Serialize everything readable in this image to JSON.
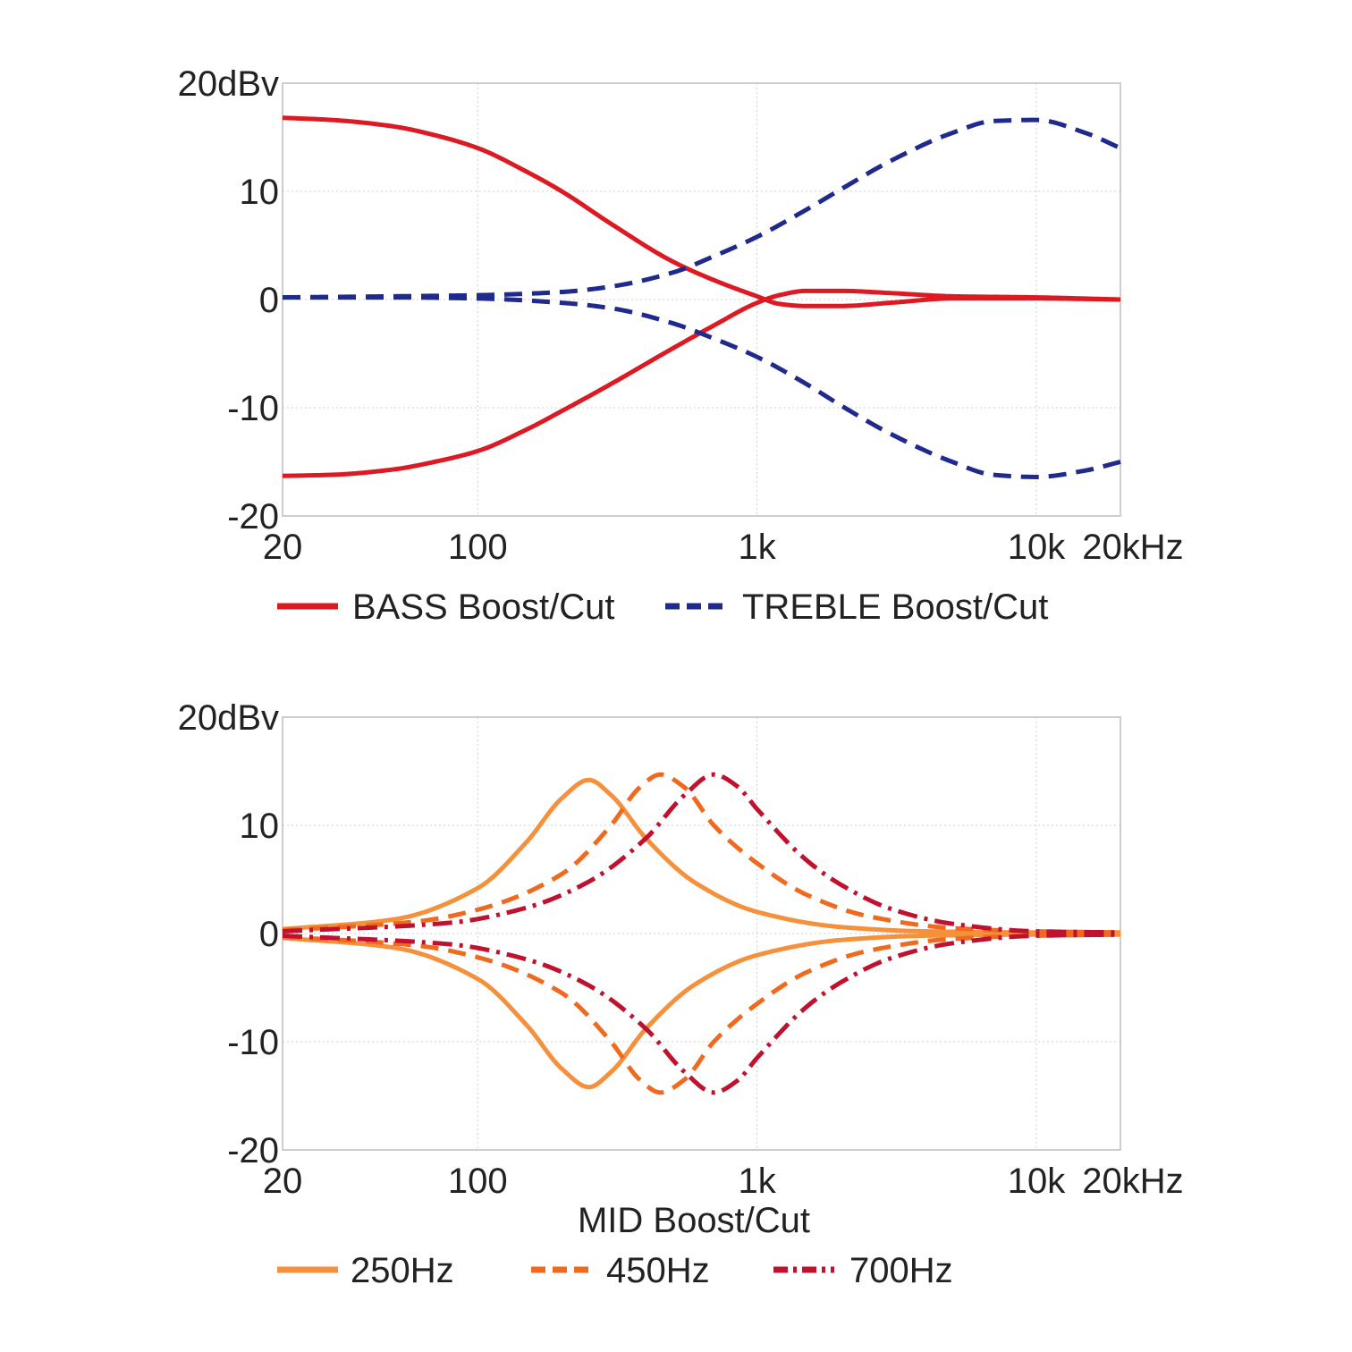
{
  "chart_data": [
    {
      "type": "line",
      "x_scale": "log",
      "xlim": [
        20,
        20000
      ],
      "ylim": [
        -20,
        20
      ],
      "x_ticks": [
        {
          "value": 20,
          "label": "20"
        },
        {
          "value": 100,
          "label": "100"
        },
        {
          "value": 1000,
          "label": "1k"
        },
        {
          "value": 10000,
          "label": "10k"
        },
        {
          "value": 20000,
          "label": "20kHz"
        }
      ],
      "y_ticks": [
        {
          "value": 20,
          "label": "20dBv"
        },
        {
          "value": 10,
          "label": "10"
        },
        {
          "value": 0,
          "label": "0"
        },
        {
          "value": -10,
          "label": "-10"
        },
        {
          "value": -20,
          "label": "-20"
        }
      ],
      "grid": true,
      "legend_position": "bottom",
      "series": [
        {
          "name": "BASS Boost/Cut",
          "legend_label": "BASS Boost/Cut",
          "color": "#dc1a24",
          "dash": "solid",
          "lines": [
            {
              "x": [
                20,
                30,
                50,
                70,
                100,
                150,
                200,
                300,
                500,
                700,
                1000,
                1200,
                1500,
                2000,
                3000,
                5000,
                10000,
                20000
              ],
              "y": [
                16.8,
                16.6,
                16.0,
                15.2,
                14.0,
                11.8,
                10.0,
                7.0,
                3.5,
                1.8,
                0.3,
                -0.4,
                -0.6,
                -0.6,
                -0.3,
                0.1,
                0.1,
                0
              ]
            },
            {
              "x": [
                20,
                30,
                50,
                70,
                100,
                150,
                200,
                300,
                500,
                700,
                1000,
                1200,
                1500,
                2000,
                3000,
                5000,
                10000,
                20000
              ],
              "y": [
                -16.3,
                -16.2,
                -15.7,
                -15.0,
                -14.0,
                -12.0,
                -10.3,
                -7.8,
                -4.5,
                -2.4,
                -0.3,
                0.4,
                0.8,
                0.8,
                0.6,
                0.3,
                0.2,
                0
              ]
            }
          ]
        },
        {
          "name": "TREBLE Boost/Cut",
          "legend_label": "TREBLE Boost/Cut",
          "color": "#1f2a8c",
          "dash": "dashed",
          "lines": [
            {
              "x": [
                20,
                50,
                100,
                200,
                300,
                500,
                700,
                1000,
                1500,
                2000,
                3000,
                5000,
                7000,
                10000,
                15000,
                20000
              ],
              "y": [
                0.2,
                0.3,
                0.4,
                0.7,
                1.2,
                2.5,
                4.0,
                5.8,
                8.3,
                10.2,
                12.8,
                15.4,
                16.5,
                16.6,
                15.4,
                14.0
              ]
            },
            {
              "x": [
                20,
                50,
                100,
                200,
                300,
                500,
                700,
                1000,
                1500,
                2000,
                3000,
                5000,
                7000,
                10000,
                15000,
                20000
              ],
              "y": [
                0.2,
                0.2,
                0.1,
                -0.3,
                -0.8,
                -2.2,
                -3.6,
                -5.3,
                -7.8,
                -9.8,
                -12.4,
                -15.0,
                -16.2,
                -16.4,
                -15.8,
                -15.0
              ]
            }
          ]
        }
      ]
    },
    {
      "type": "line",
      "x_scale": "log",
      "xlim": [
        20,
        20000
      ],
      "ylim": [
        -20,
        20
      ],
      "xlabel": "MID Boost/Cut",
      "x_ticks": [
        {
          "value": 20,
          "label": "20"
        },
        {
          "value": 100,
          "label": "100"
        },
        {
          "value": 1000,
          "label": "1k"
        },
        {
          "value": 10000,
          "label": "10k"
        },
        {
          "value": 20000,
          "label": "20kHz"
        }
      ],
      "y_ticks": [
        {
          "value": 20,
          "label": "20dBv"
        },
        {
          "value": 10,
          "label": "10"
        },
        {
          "value": 0,
          "label": "0"
        },
        {
          "value": -10,
          "label": "-10"
        },
        {
          "value": -20,
          "label": "-20"
        }
      ],
      "grid": true,
      "legend_position": "bottom",
      "series": [
        {
          "name": "250Hz",
          "legend_label": "250Hz",
          "color": "#f5913d",
          "dash": "solid",
          "center_hz": 250,
          "peak_db": 14.2,
          "lines": [
            {
              "x": [
                20,
                50,
                100,
                150,
                200,
                250,
                300,
                400,
                600,
                1000,
                2000,
                4000,
                10000,
                20000
              ],
              "y": [
                0.4,
                1.3,
                4.2,
                8.5,
                12.5,
                14.2,
                12.8,
                8.8,
                4.7,
                2.0,
                0.6,
                0.2,
                0.1,
                0.1
              ]
            },
            {
              "x": [
                20,
                50,
                100,
                150,
                200,
                250,
                300,
                400,
                600,
                1000,
                2000,
                4000,
                10000,
                20000
              ],
              "y": [
                -0.4,
                -1.3,
                -4.2,
                -8.5,
                -12.5,
                -14.2,
                -12.8,
                -8.8,
                -4.7,
                -2.0,
                -0.6,
                -0.2,
                -0.1,
                -0.1
              ]
            }
          ]
        },
        {
          "name": "450Hz",
          "legend_label": "450Hz",
          "color": "#ef6a1f",
          "dash": "dashed",
          "center_hz": 450,
          "peak_db": 14.7,
          "lines": [
            {
              "x": [
                20,
                60,
                100,
                200,
                300,
                380,
                450,
                550,
                700,
                1000,
                1500,
                2500,
                5000,
                10000,
                20000
              ],
              "y": [
                0.3,
                1.1,
                2.2,
                5.5,
                10.0,
                13.5,
                14.7,
                13.5,
                10.0,
                6.5,
                3.6,
                1.6,
                0.5,
                0.2,
                0.1
              ]
            },
            {
              "x": [
                20,
                60,
                100,
                200,
                300,
                380,
                450,
                550,
                700,
                1000,
                1500,
                2500,
                5000,
                10000,
                20000
              ],
              "y": [
                -0.3,
                -1.1,
                -2.2,
                -5.5,
                -10.0,
                -13.5,
                -14.7,
                -13.5,
                -10.0,
                -6.5,
                -3.6,
                -1.6,
                -0.5,
                -0.2,
                -0.1
              ]
            }
          ]
        },
        {
          "name": "700Hz",
          "legend_label": "700Hz",
          "color": "#c0122e",
          "dash": "dashdot",
          "center_hz": 700,
          "peak_db": 14.7,
          "lines": [
            {
              "x": [
                20,
                80,
                150,
                250,
                400,
                550,
                700,
                850,
                1000,
                1500,
                2000,
                3000,
                5000,
                10000,
                20000
              ],
              "y": [
                0.2,
                1.0,
                2.4,
                4.8,
                8.8,
                12.8,
                14.7,
                13.6,
                11.5,
                6.8,
                4.5,
                2.3,
                0.9,
                0.2,
                0.1
              ]
            },
            {
              "x": [
                20,
                80,
                150,
                250,
                400,
                550,
                700,
                850,
                1000,
                1500,
                2000,
                3000,
                5000,
                10000,
                20000
              ],
              "y": [
                -0.2,
                -1.0,
                -2.4,
                -4.8,
                -8.8,
                -12.8,
                -14.7,
                -13.6,
                -11.5,
                -6.8,
                -4.5,
                -2.3,
                -0.9,
                -0.2,
                -0.1
              ]
            }
          ]
        }
      ]
    }
  ]
}
